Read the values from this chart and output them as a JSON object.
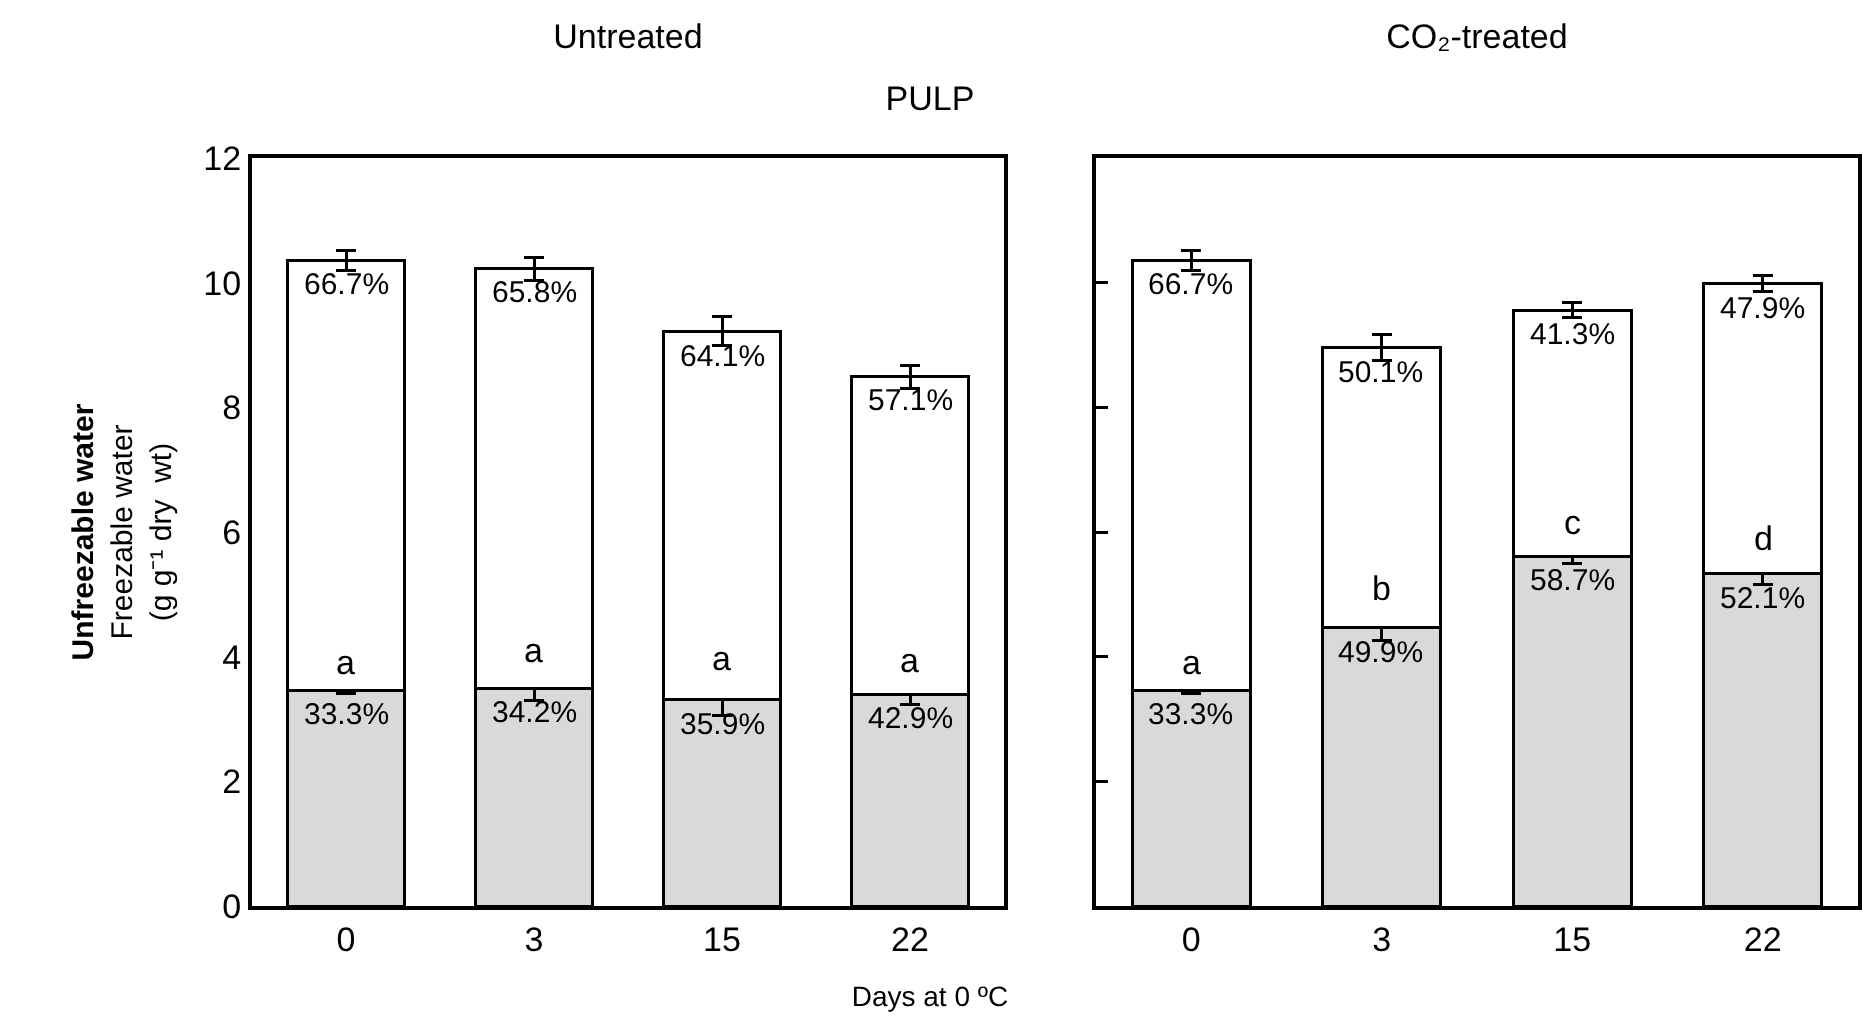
{
  "chart_data": [
    {
      "type": "bar",
      "title": "Untreated",
      "subtitle": "PULP",
      "xlabel": "Days at 0 ºC",
      "ylabel": "Unfreezable water\nFreezable water\n(g g⁻¹ dry  wt)",
      "categories": [
        "0",
        "3",
        "15",
        "22"
      ],
      "stacked": true,
      "grid": false,
      "ylim": [
        0,
        12
      ],
      "yticks": [
        0,
        2,
        4,
        6,
        8,
        10,
        12
      ],
      "series": [
        {
          "color": "#d9d9d9",
          "values": [
            3.45,
            3.49,
            3.31,
            3.39
          ],
          "errors": [
            0.04,
            0.19,
            0.26,
            0.15
          ]
        },
        {
          "color": "#ffffff",
          "values": [
            6.91,
            6.73,
            5.91,
            5.1
          ],
          "errors": [
            0.16,
            0.19,
            0.23,
            0.18
          ]
        }
      ],
      "annotations": [
        {
          "text": "66.7%",
          "x": "0",
          "y": 10.36
        },
        {
          "text": "65.8%",
          "x": "3",
          "y": 10.22
        },
        {
          "text": "64.1%",
          "x": "15",
          "y": 9.22
        },
        {
          "text": "57.1%",
          "x": "22",
          "y": 8.49
        },
        {
          "text": "a",
          "x": "0",
          "y": 3.45
        },
        {
          "text": "a",
          "x": "3",
          "y": 3.49
        },
        {
          "text": "a",
          "x": "15",
          "y": 3.31
        },
        {
          "text": "a",
          "x": "22",
          "y": 3.39
        },
        {
          "text": "33.3%",
          "x": "0",
          "y": 3.45
        },
        {
          "text": "34.2%",
          "x": "3",
          "y": 3.49
        },
        {
          "text": "35.9%",
          "x": "15",
          "y": 3.31
        },
        {
          "text": "42.9%",
          "x": "22",
          "y": 3.39
        }
      ]
    },
    {
      "type": "bar",
      "title": "CO₂-treated",
      "categories": [
        "0",
        "3",
        "15",
        "22"
      ],
      "stacked": true,
      "grid": false,
      "tick_labels": "x",
      "ylim": [
        0,
        12
      ],
      "yticks": [
        0,
        2,
        4,
        6,
        8,
        10,
        12
      ],
      "series": [
        {
          "color": "#d9d9d9",
          "values": [
            3.45,
            4.47,
            5.61,
            5.33
          ],
          "errors": [
            0.04,
            0.21,
            0.12,
            0.17
          ]
        },
        {
          "color": "#ffffff",
          "values": [
            6.91,
            4.49,
            3.95,
            4.66
          ],
          "errors": [
            0.16,
            0.21,
            0.12,
            0.13
          ]
        }
      ],
      "annotations": [
        {
          "text": "66.7%",
          "x": "0",
          "y": 10.36
        },
        {
          "text": "50.1%",
          "x": "3",
          "y": 8.96
        },
        {
          "text": "41.3%",
          "x": "15",
          "y": 9.56
        },
        {
          "text": "47.9%",
          "x": "22",
          "y": 9.99
        },
        {
          "text": "a",
          "x": "0",
          "y": 3.45
        },
        {
          "text": "b",
          "x": "3",
          "y": 4.47
        },
        {
          "text": "c",
          "x": "15",
          "y": 5.61
        },
        {
          "text": "d",
          "x": "22",
          "y": 5.33
        },
        {
          "text": "33.3%",
          "x": "0",
          "y": 3.45
        },
        {
          "text": "49.9%",
          "x": "3",
          "y": 4.47
        },
        {
          "text": "58.7%",
          "x": "15",
          "y": 5.61
        },
        {
          "text": "52.1%",
          "x": "22",
          "y": 5.33
        }
      ]
    }
  ]
}
